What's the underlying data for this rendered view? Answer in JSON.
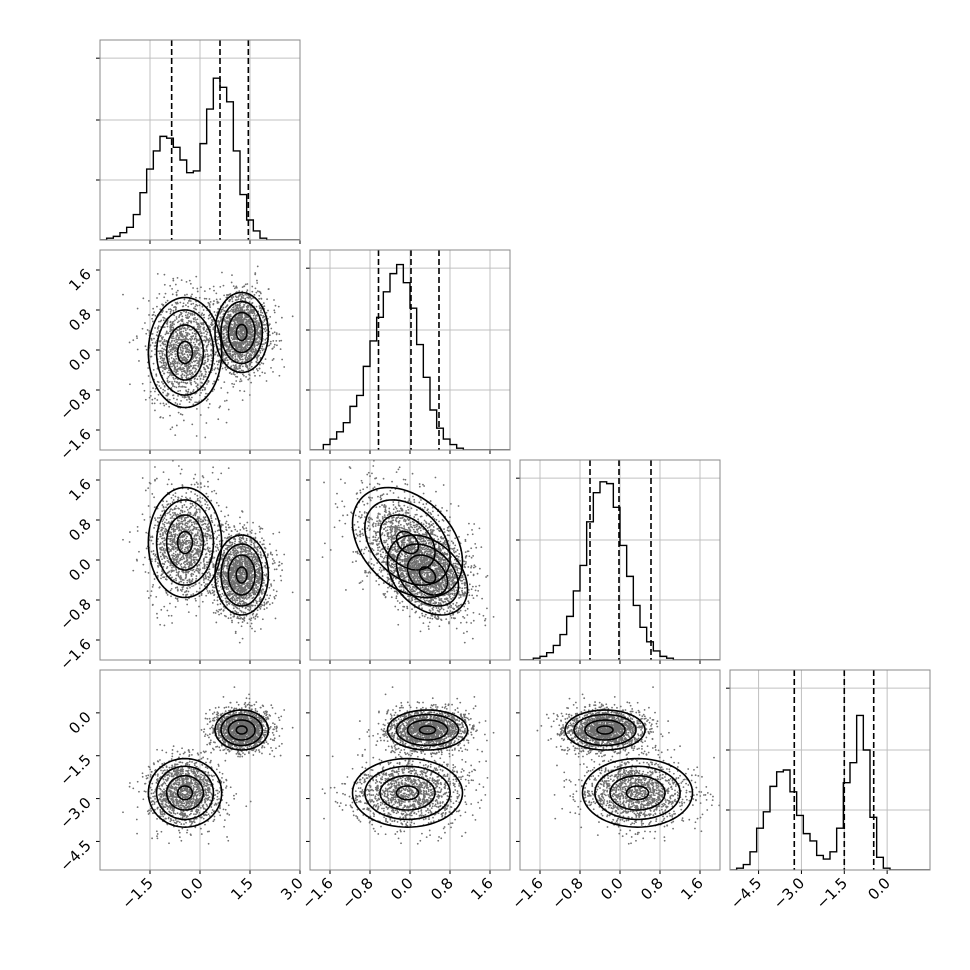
{
  "figure": {
    "type": "corner-plot",
    "n_params": 4
  },
  "chart_data": {
    "type": "corner",
    "grid": true,
    "quantile_lines": "dashed",
    "colors": {
      "lines": "#000000",
      "frame": "#888888",
      "grid": "#c0c0c0",
      "points": "#6f6f6f"
    },
    "axes": [
      {
        "range": [
          -3.0,
          3.0
        ],
        "ticks": [
          -1.5,
          0.0,
          1.5,
          3.0
        ],
        "tick_labels": [
          "−1.5",
          "0.0",
          "1.5",
          "3.0"
        ]
      },
      {
        "range": [
          -2.0,
          2.0
        ],
        "ticks": [
          -1.6,
          -0.8,
          0.0,
          0.8,
          1.6
        ],
        "tick_labels": [
          "−1.6",
          "−0.8",
          "0.0",
          "0.8",
          "1.6"
        ]
      },
      {
        "range": [
          -2.0,
          2.0
        ],
        "ticks": [
          -1.6,
          -0.8,
          0.0,
          0.8,
          1.6
        ],
        "tick_labels": [
          "−1.6",
          "−0.8",
          "0.0",
          "0.8",
          "1.6"
        ]
      },
      {
        "range": [
          -5.5,
          1.5
        ],
        "ticks": [
          -4.5,
          -3.0,
          -1.5,
          0.0
        ],
        "tick_labels": [
          "−4.5",
          "−3.0",
          "−1.5",
          "0.0"
        ]
      }
    ],
    "histograms": [
      {
        "param": 0,
        "bin_edges_range": [
          -3.0,
          3.0
        ],
        "ymax": 1.0,
        "counts": [
          0.0,
          0.01,
          0.02,
          0.04,
          0.07,
          0.14,
          0.26,
          0.39,
          0.49,
          0.57,
          0.56,
          0.51,
          0.44,
          0.37,
          0.38,
          0.53,
          0.72,
          0.89,
          0.84,
          0.76,
          0.49,
          0.25,
          0.11,
          0.05,
          0.01,
          0.0,
          0.0,
          0.0,
          0.0,
          0.0
        ],
        "quantiles": [
          -0.85,
          0.6,
          1.45
        ]
      },
      {
        "param": 1,
        "bin_edges_range": [
          -2.0,
          2.0
        ],
        "ymax": 1.0,
        "counts": [
          0.0,
          0.0,
          0.03,
          0.06,
          0.1,
          0.15,
          0.24,
          0.3,
          0.46,
          0.6,
          0.73,
          0.87,
          0.97,
          1.02,
          0.92,
          0.78,
          0.58,
          0.4,
          0.22,
          0.12,
          0.06,
          0.03,
          0.01,
          0.0,
          0.0,
          0.0,
          0.0,
          0.0,
          0.0,
          0.0
        ],
        "quantiles": [
          -0.63,
          0.02,
          0.58
        ]
      },
      {
        "param": 2,
        "bin_edges_range": [
          -2.0,
          2.0
        ],
        "ymax": 1.0,
        "counts": [
          0.0,
          0.0,
          0.01,
          0.02,
          0.04,
          0.08,
          0.14,
          0.24,
          0.38,
          0.52,
          0.76,
          0.92,
          0.98,
          0.97,
          0.84,
          0.63,
          0.46,
          0.3,
          0.18,
          0.1,
          0.05,
          0.02,
          0.01,
          0.0,
          0.0,
          0.0,
          0.0,
          0.0,
          0.0,
          0.0
        ],
        "quantiles": [
          -0.6,
          -0.02,
          0.62
        ]
      },
      {
        "param": 3,
        "bin_edges_range": [
          -5.5,
          1.5
        ],
        "ymax": 1.0,
        "counts": [
          0.0,
          0.01,
          0.03,
          0.1,
          0.23,
          0.32,
          0.46,
          0.54,
          0.55,
          0.43,
          0.3,
          0.2,
          0.16,
          0.08,
          0.06,
          0.1,
          0.23,
          0.48,
          0.59,
          0.85,
          0.66,
          0.29,
          0.07,
          0.01,
          0.0,
          0.0,
          0.0,
          0.0,
          0.0,
          0.0
        ],
        "quantiles": [
          -3.25,
          -1.5,
          -0.47
        ]
      }
    ],
    "mixture": {
      "components": [
        {
          "weight": 0.45,
          "mean": [
            -0.45,
            -0.05,
            0.35,
            -2.8
          ],
          "sd": [
            0.55,
            0.55,
            0.55,
            0.6
          ],
          "corr12": -0.35
        },
        {
          "weight": 0.55,
          "mean": [
            1.25,
            0.35,
            -0.3,
            -0.6
          ],
          "sd": [
            0.4,
            0.4,
            0.4,
            0.35
          ],
          "corr12": -0.35
        }
      ]
    }
  }
}
